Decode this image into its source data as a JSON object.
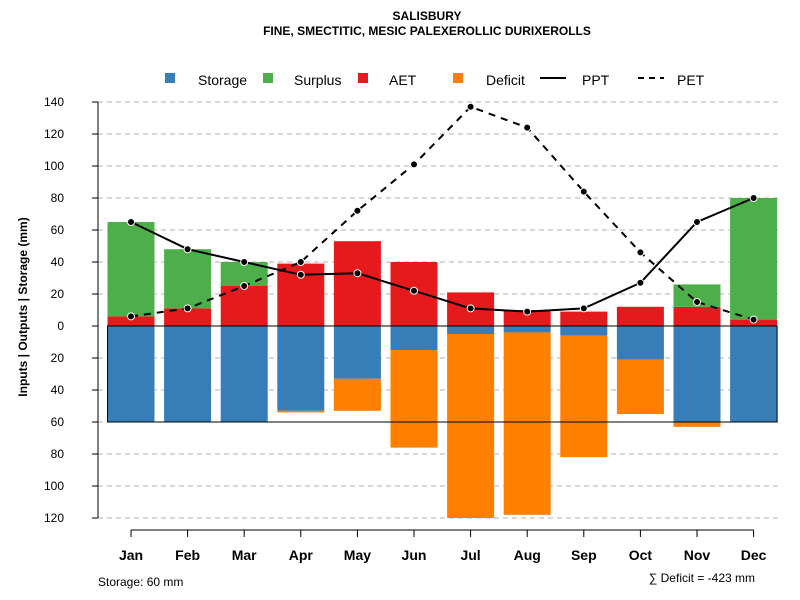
{
  "chart_data": {
    "type": "bar",
    "title": "SALISBURY",
    "subtitle": "FINE, SMECTITIC, MESIC PALEXEROLLIC DURIXEROLLS",
    "ylabel": "Inputs | Outputs | Storage    (mm)",
    "categories": [
      "Jan",
      "Feb",
      "Mar",
      "Apr",
      "May",
      "Jun",
      "Jul",
      "Aug",
      "Sep",
      "Oct",
      "Nov",
      "Dec"
    ],
    "y_ticks_up": [
      "0",
      "20",
      "40",
      "60",
      "80",
      "100",
      "120",
      "140"
    ],
    "y_ticks_down": [
      "20",
      "40",
      "60",
      "80",
      "100",
      "120"
    ],
    "ylim": [
      -120,
      140
    ],
    "storage_capacity": 60,
    "colors": {
      "storage": "#377eb8",
      "surplus": "#4daf4a",
      "aet": "#e41a1c",
      "deficit": "#ff7f00",
      "line": "#000000",
      "grid": "#b3b3b3"
    },
    "legend": {
      "storage": "Storage",
      "surplus": "Surplus",
      "aet": "AET",
      "deficit": "Deficit",
      "ppt": "PPT",
      "pet": "PET"
    },
    "series": {
      "aet": [
        6,
        11,
        25,
        39,
        53,
        40,
        21,
        10,
        9,
        12,
        12,
        4
      ],
      "surplus": [
        59,
        37,
        15,
        0,
        0,
        0,
        0,
        0,
        0,
        0,
        14,
        76
      ],
      "storage": [
        60,
        60,
        60,
        53,
        33,
        15,
        5,
        4,
        6,
        21,
        60,
        60
      ],
      "deficit": [
        0,
        0,
        0,
        1,
        20,
        61,
        115,
        114,
        76,
        34,
        3,
        0
      ],
      "ppt": [
        65,
        48,
        40,
        32,
        33,
        22,
        11,
        9,
        11,
        27,
        65,
        80
      ],
      "pet": [
        6,
        11,
        25,
        40,
        72,
        101,
        137,
        124,
        84,
        46,
        15,
        4
      ]
    },
    "footer_left": "Storage: 60 mm",
    "footer_right": "∑ Deficit = -423 mm"
  }
}
